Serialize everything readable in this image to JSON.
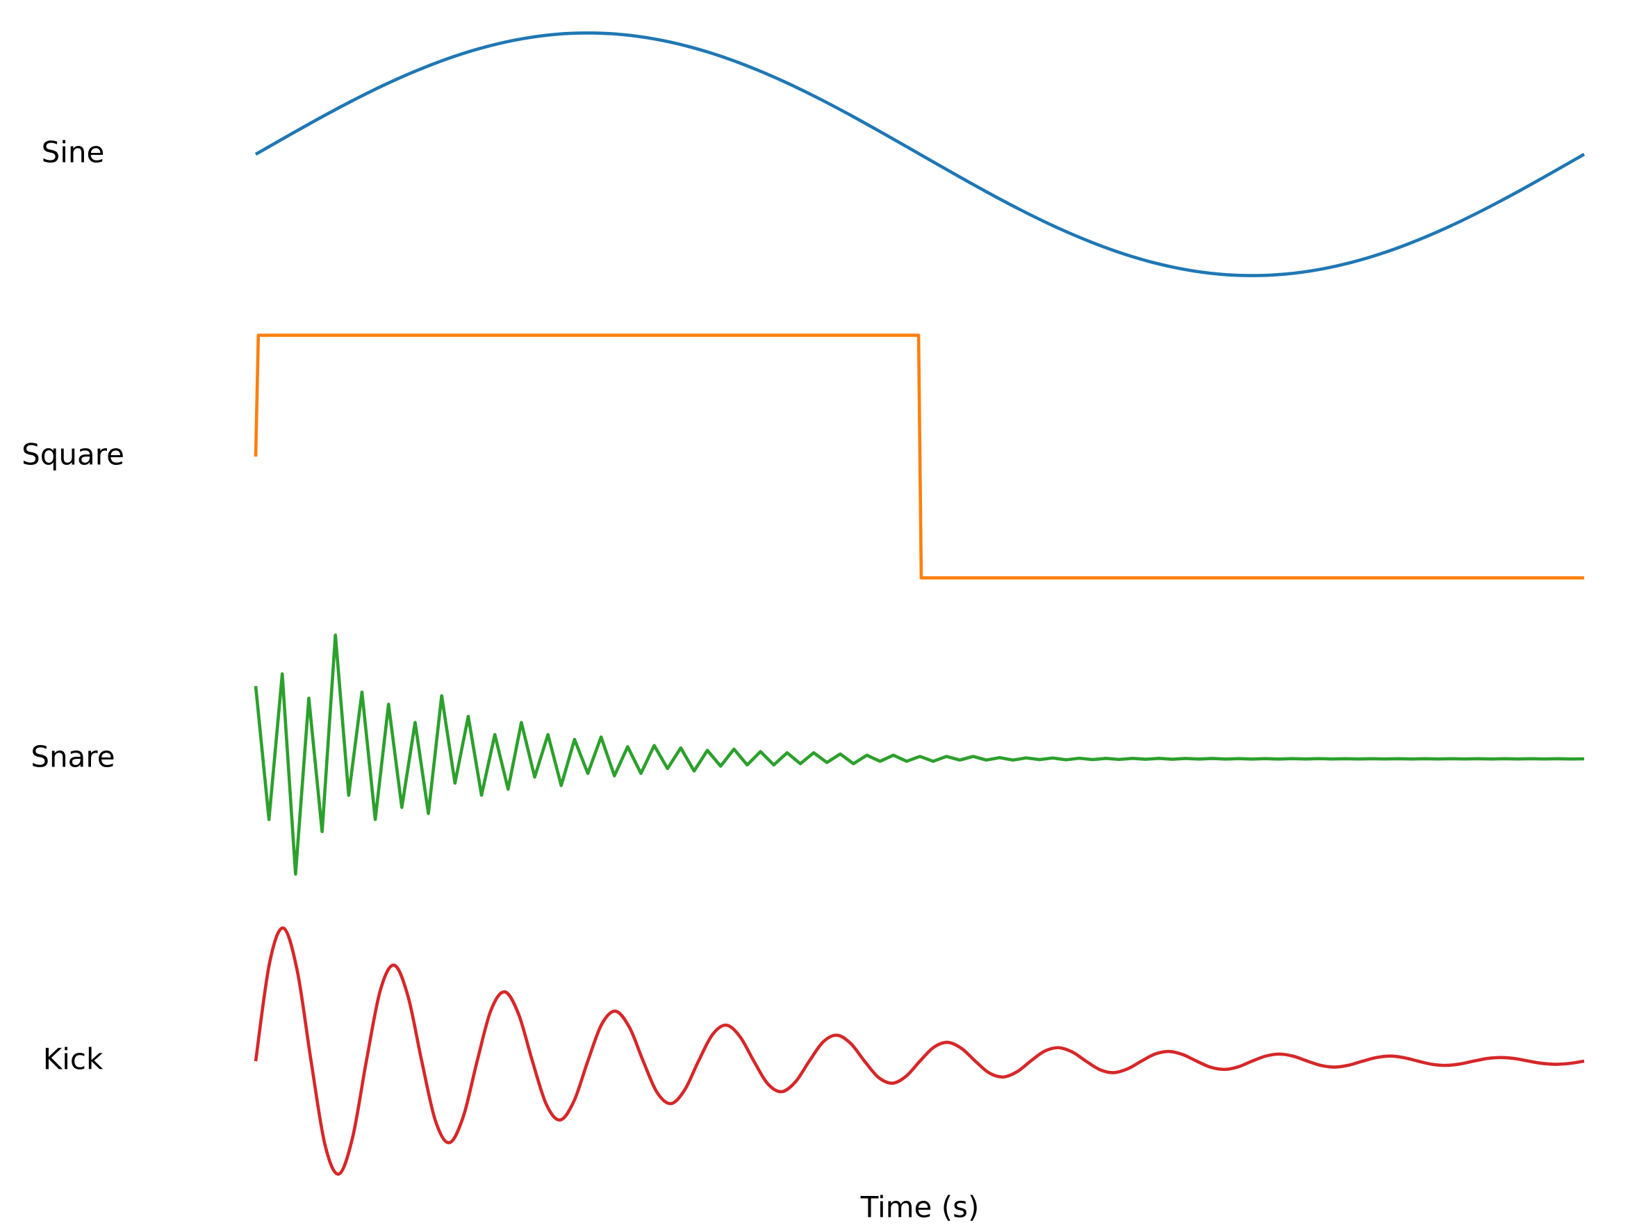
{
  "chart_data": [
    {
      "type": "line",
      "ylabel": "Sine",
      "color": "#1f77b4",
      "smooth": true,
      "xlim": [
        0,
        1
      ],
      "ylim": [
        -1.1,
        1.1
      ],
      "x": [
        0,
        0.025,
        0.05,
        0.075,
        0.1,
        0.125,
        0.15,
        0.175,
        0.2,
        0.225,
        0.25,
        0.275,
        0.3,
        0.325,
        0.35,
        0.375,
        0.4,
        0.425,
        0.45,
        0.475,
        0.5,
        0.525,
        0.55,
        0.575,
        0.6,
        0.625,
        0.65,
        0.675,
        0.7,
        0.725,
        0.75,
        0.775,
        0.8,
        0.825,
        0.85,
        0.875,
        0.9,
        0.925,
        0.95,
        0.975,
        1
      ],
      "values": [
        0,
        0.156,
        0.309,
        0.454,
        0.588,
        0.707,
        0.809,
        0.891,
        0.951,
        0.988,
        1,
        0.988,
        0.951,
        0.891,
        0.809,
        0.707,
        0.588,
        0.454,
        0.309,
        0.156,
        0,
        -0.156,
        -0.309,
        -0.454,
        -0.588,
        -0.707,
        -0.809,
        -0.891,
        -0.951,
        -0.988,
        -1,
        -0.988,
        -0.951,
        -0.891,
        -0.809,
        -0.707,
        -0.588,
        -0.454,
        -0.309,
        -0.156,
        0
      ]
    },
    {
      "type": "line",
      "ylabel": "Square",
      "color": "#ff7f0e",
      "smooth": false,
      "xlim": [
        0,
        1
      ],
      "ylim": [
        -1.1,
        1.1
      ],
      "x": [
        0,
        0.002,
        0.499,
        0.501,
        1
      ],
      "values": [
        0,
        1,
        1,
        -1,
        -1
      ]
    },
    {
      "type": "line",
      "ylabel": "Snare",
      "color": "#2ca02c",
      "smooth": false,
      "xlim": [
        0,
        1
      ],
      "ylim": [
        -1.1,
        1.1
      ],
      "x": [
        0,
        0.01,
        0.02,
        0.03,
        0.04,
        0.05,
        0.06,
        0.07,
        0.08,
        0.09,
        0.1,
        0.11,
        0.12,
        0.13,
        0.14,
        0.15,
        0.16,
        0.17,
        0.18,
        0.19,
        0.2,
        0.21,
        0.22,
        0.23,
        0.24,
        0.25,
        0.26,
        0.27,
        0.28,
        0.29,
        0.3,
        0.31,
        0.32,
        0.33,
        0.34,
        0.35,
        0.36,
        0.37,
        0.38,
        0.39,
        0.4,
        0.41,
        0.42,
        0.43,
        0.44,
        0.45,
        0.46,
        0.47,
        0.48,
        0.49,
        0.5,
        0.51,
        0.52,
        0.53,
        0.54,
        0.55,
        0.56,
        0.57,
        0.58,
        0.59,
        0.6,
        0.61,
        0.62,
        0.63,
        0.64,
        0.65,
        0.66,
        0.67,
        0.68,
        0.69,
        0.7,
        0.71,
        0.72,
        0.73,
        0.74,
        0.75,
        0.76,
        0.77,
        0.78,
        0.79,
        0.8,
        0.81,
        0.82,
        0.83,
        0.84,
        0.85,
        0.86,
        0.87,
        0.88,
        0.89,
        0.9,
        0.91,
        0.92,
        0.93,
        0.94,
        0.95,
        0.96,
        0.97,
        0.98,
        0.99,
        1
      ],
      "values": [
        0.6,
        -0.5,
        0.7,
        -0.95,
        0.5,
        -0.6,
        1.02,
        -0.3,
        0.55,
        -0.5,
        0.45,
        -0.4,
        0.3,
        -0.45,
        0.52,
        -0.2,
        0.35,
        -0.3,
        0.2,
        -0.25,
        0.3,
        -0.15,
        0.2,
        -0.22,
        0.16,
        -0.12,
        0.18,
        -0.14,
        0.1,
        -0.12,
        0.11,
        -0.08,
        0.09,
        -0.1,
        0.07,
        -0.06,
        0.08,
        -0.05,
        0.06,
        -0.05,
        0.05,
        -0.04,
        0.05,
        -0.03,
        0.04,
        -0.04,
        0.03,
        -0.02,
        0.03,
        -0.02,
        0.02,
        -0.02,
        0.02,
        -0.01,
        0.02,
        -0.01,
        0.01,
        -0.01,
        0.008,
        -0.006,
        0.007,
        -0.008,
        0.005,
        -0.006,
        0.004,
        -0.005,
        0.004,
        -0.003,
        0.004,
        -0.003,
        0.003,
        -0.002,
        0.003,
        -0.002,
        0.002,
        -0.002,
        0.002,
        -0.002,
        0.002,
        -0.001,
        0.002,
        -0.001,
        0.001,
        -0.001,
        0.001,
        -0.001,
        0.001,
        -0.001,
        0.001,
        -0.001,
        0.001,
        -0.001,
        0.001,
        -0.001,
        0.001,
        -0.001,
        0.001,
        -0.001,
        0.001,
        -0.001,
        0
      ]
    },
    {
      "type": "line",
      "ylabel": "Kick",
      "xlabel": "Time (s)",
      "color": "#d62728",
      "smooth": true,
      "xlim": [
        0,
        1
      ],
      "ylim": [
        -1.1,
        1.1
      ],
      "x": [
        0,
        0.0104,
        0.0208,
        0.0313,
        0.0417,
        0.0521,
        0.0625,
        0.0729,
        0.0833,
        0.0938,
        0.1042,
        0.1146,
        0.125,
        0.1354,
        0.1458,
        0.1563,
        0.1667,
        0.1771,
        0.1875,
        0.1979,
        0.2083,
        0.2188,
        0.2292,
        0.2396,
        0.25,
        0.2604,
        0.2708,
        0.2813,
        0.2917,
        0.3021,
        0.3125,
        0.3229,
        0.3333,
        0.3438,
        0.3542,
        0.3646,
        0.375,
        0.3854,
        0.3958,
        0.4063,
        0.4167,
        0.4271,
        0.4375,
        0.4479,
        0.4583,
        0.4688,
        0.4792,
        0.4896,
        0.5,
        0.5104,
        0.5208,
        0.5313,
        0.5417,
        0.5521,
        0.5625,
        0.5729,
        0.5833,
        0.5938,
        0.6042,
        0.6146,
        0.625,
        0.6354,
        0.6458,
        0.6563,
        0.6667,
        0.6771,
        0.6875,
        0.6979,
        0.7083,
        0.7188,
        0.7292,
        0.7396,
        0.75,
        0.7604,
        0.7708,
        0.7813,
        0.7917,
        0.8021,
        0.8125,
        0.8229,
        0.8333,
        0.8438,
        0.8542,
        0.8646,
        0.875,
        0.8854,
        0.8958,
        0.9063,
        0.9167,
        0.9271,
        0.9375,
        0.9479,
        0.9583,
        0.9688,
        0.9792,
        0.9896,
        1
      ],
      "values": [
        0,
        0.807,
        1.097,
        0.744,
        0,
        -0.686,
        -0.931,
        -0.632,
        0,
        0.583,
        0.791,
        0.537,
        0,
        -0.495,
        -0.672,
        -0.456,
        0,
        0.42,
        0.571,
        0.387,
        0,
        -0.357,
        -0.485,
        -0.329,
        0,
        0.303,
        0.412,
        0.279,
        0,
        -0.257,
        -0.35,
        -0.238,
        0,
        0.218,
        0.297,
        0.201,
        0,
        -0.186,
        -0.252,
        -0.171,
        0,
        0.158,
        0.214,
        0.146,
        0,
        -0.134,
        -0.182,
        -0.124,
        0,
        0.114,
        0.155,
        0.105,
        0,
        -0.097,
        -0.131,
        -0.089,
        0,
        0.082,
        0.111,
        0.076,
        0,
        -0.07,
        -0.095,
        -0.064,
        0,
        0.059,
        0.08,
        0.054,
        0,
        -0.05,
        -0.068,
        -0.047,
        0,
        0.042,
        0.058,
        0.04,
        0,
        -0.036,
        -0.049,
        -0.033,
        0,
        0.03,
        0.042,
        0.028,
        0,
        -0.026,
        -0.035,
        -0.024,
        0,
        0.022,
        0.03,
        0.021,
        0,
        -0.019,
        -0.026,
        -0.018,
        0
      ]
    }
  ]
}
